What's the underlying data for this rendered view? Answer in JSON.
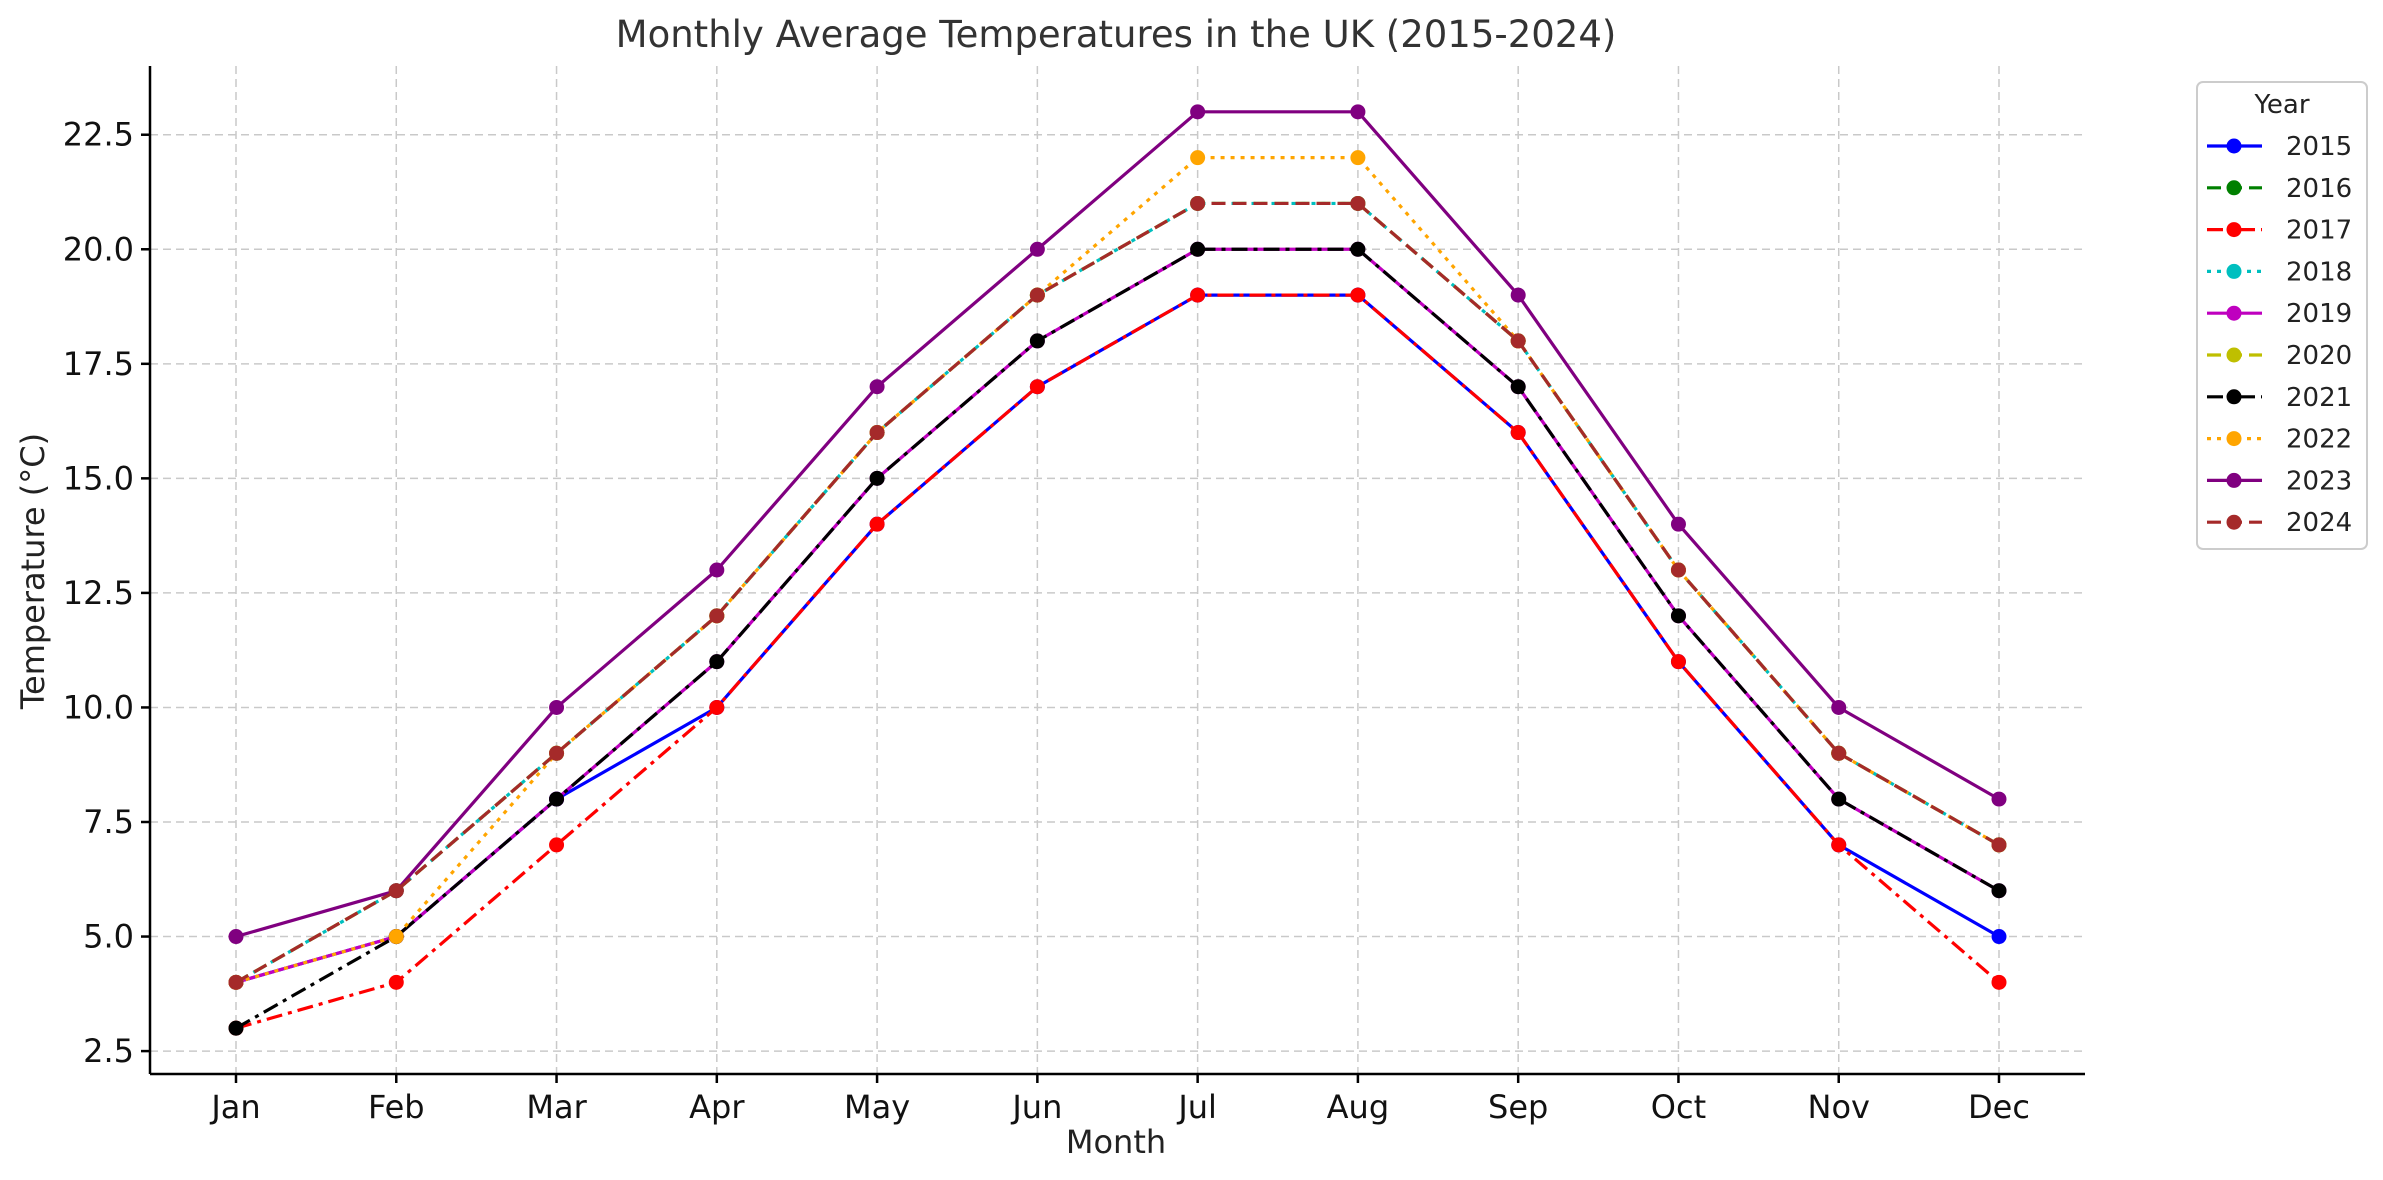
{
  "chart_data": {
    "type": "line",
    "title": "Monthly Average Temperatures in the UK (2015-2024)",
    "xlabel": "Month",
    "ylabel": "Temperature (°C)",
    "categories": [
      "Jan",
      "Feb",
      "Mar",
      "Apr",
      "May",
      "Jun",
      "Jul",
      "Aug",
      "Sep",
      "Oct",
      "Nov",
      "Dec"
    ],
    "ylim": [
      2.0,
      24.0
    ],
    "yticks": [
      "2.5",
      "5.0",
      "7.5",
      "10.0",
      "12.5",
      "15.0",
      "17.5",
      "20.0",
      "22.5"
    ],
    "grid": true,
    "legend": {
      "title": "Year",
      "position": "outside-top-right"
    },
    "series": [
      {
        "name": "2015",
        "color": "#0000ff",
        "dash": "solid",
        "values": [
          4,
          5,
          8,
          10,
          14,
          17,
          19,
          19,
          16,
          11,
          7,
          5
        ]
      },
      {
        "name": "2016",
        "color": "#008000",
        "dash": "dashed",
        "values": [
          4,
          6,
          9,
          12,
          16,
          19,
          21,
          21,
          18,
          13,
          9,
          7
        ]
      },
      {
        "name": "2017",
        "color": "#ff0000",
        "dash": "dashdot",
        "values": [
          3,
          4,
          7,
          10,
          14,
          17,
          19,
          19,
          16,
          11,
          7,
          4
        ]
      },
      {
        "name": "2018",
        "color": "#00bfbf",
        "dash": "dotted",
        "values": [
          4,
          6,
          9,
          12,
          16,
          19,
          21,
          21,
          18,
          13,
          9,
          7
        ]
      },
      {
        "name": "2019",
        "color": "#bf00bf",
        "dash": "solid",
        "values": [
          4,
          5,
          8,
          11,
          15,
          18,
          20,
          20,
          17,
          12,
          8,
          6
        ]
      },
      {
        "name": "2020",
        "color": "#bfbf00",
        "dash": "dashed",
        "values": [
          4,
          6,
          9,
          12,
          16,
          19,
          21,
          21,
          18,
          13,
          9,
          7
        ]
      },
      {
        "name": "2021",
        "color": "#000000",
        "dash": "dashdot",
        "values": [
          3,
          5,
          8,
          11,
          15,
          18,
          20,
          20,
          17,
          12,
          8,
          6
        ]
      },
      {
        "name": "2022",
        "color": "#ffa500",
        "dash": "dotted",
        "values": [
          4,
          5,
          9,
          12,
          16,
          19,
          22,
          22,
          18,
          13,
          9,
          7
        ]
      },
      {
        "name": "2023",
        "color": "#800080",
        "dash": "solid",
        "values": [
          5,
          6,
          10,
          13,
          17,
          20,
          23,
          23,
          19,
          14,
          10,
          8
        ]
      },
      {
        "name": "2024",
        "color": "#a52a2a",
        "dash": "dashed",
        "values": [
          4,
          6,
          9,
          12,
          16,
          19,
          21,
          21,
          18,
          13,
          9,
          7
        ]
      }
    ]
  }
}
